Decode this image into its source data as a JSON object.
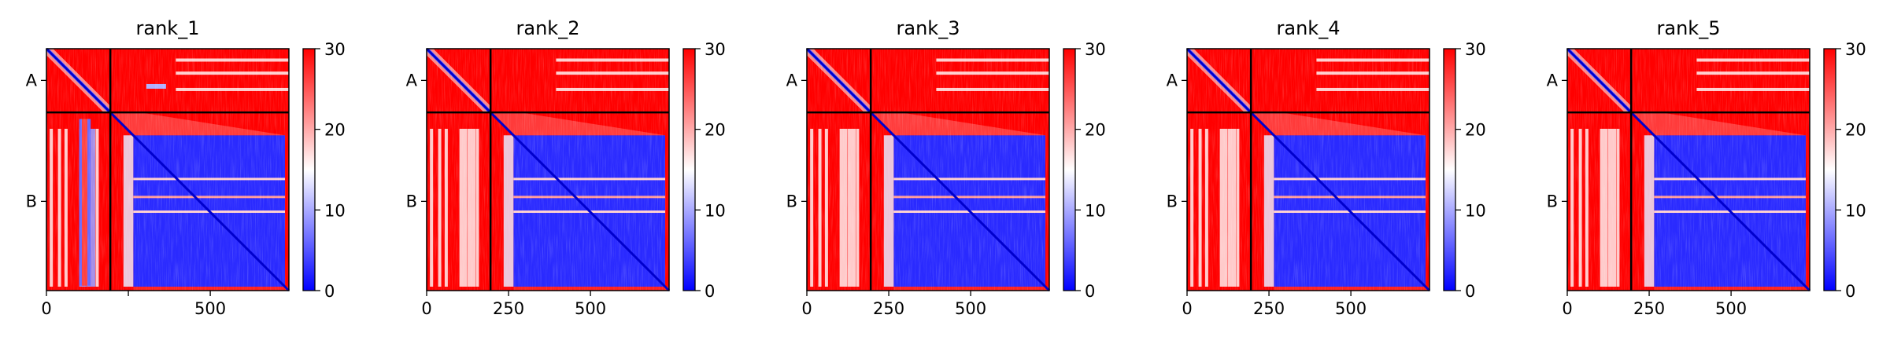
{
  "chart_data": {
    "type": "heatmap",
    "colormap": {
      "min": 0,
      "mid": 15,
      "max": 30,
      "min_color": "#0000ff",
      "mid_color": "#ffffff",
      "max_color": "#ff0000"
    },
    "colorbar": {
      "ticks": [
        0,
        10,
        20,
        30
      ],
      "range": [
        0,
        30
      ]
    },
    "x_ticks": [
      0,
      250,
      500
    ],
    "x_range": [
      0,
      740
    ],
    "y_range": [
      740,
      0
    ],
    "chain_boundary": 195,
    "chain_labels": [
      "A",
      "B"
    ],
    "chain_label_centers": [
      97,
      467
    ],
    "panels": [
      {
        "title": "rank_1",
        "x_tick_labels": [
          "0",
          "",
          "500"
        ]
      },
      {
        "title": "rank_2",
        "x_tick_labels": [
          "0",
          "250",
          "500"
        ]
      },
      {
        "title": "rank_3",
        "x_tick_labels": [
          "0",
          "250",
          "500"
        ]
      },
      {
        "title": "rank_4",
        "x_tick_labels": [
          "0",
          "250",
          "500"
        ]
      },
      {
        "title": "rank_5",
        "x_tick_labels": [
          "0",
          "250",
          "500"
        ]
      }
    ]
  }
}
